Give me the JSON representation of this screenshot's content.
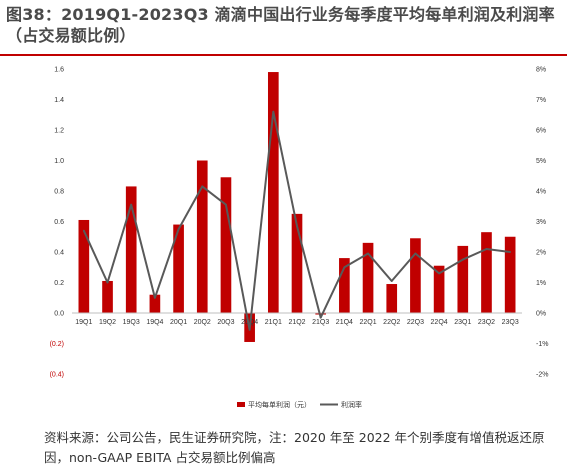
{
  "figure": {
    "title": "图38：2019Q1-2023Q3 滴滴中国出行业务每季度平均每单利润及利润率（占交易额比例）",
    "note": "资料来源：公司公告，民生证券研究院，注：2020 年至 2022 年个别季度有增值税返还原因，non-GAAP EBITA 占交易额比例偏高"
  },
  "colors": {
    "bar": "#c00000",
    "line": "#595959",
    "accent": "#c00000"
  },
  "chart_data": {
    "type": "bar",
    "categories": [
      "19Q1",
      "19Q2",
      "19Q3",
      "19Q4",
      "20Q1",
      "20Q2",
      "20Q3",
      "20Q4",
      "21Q1",
      "21Q2",
      "21Q3",
      "21Q4",
      "22Q1",
      "22Q2",
      "22Q3",
      "22Q4",
      "23Q1",
      "23Q2",
      "23Q3"
    ],
    "series": [
      {
        "name": "平均每单利润（元）",
        "type": "bar",
        "axis": "left",
        "values": [
          0.61,
          0.21,
          0.83,
          0.12,
          0.58,
          1.0,
          0.89,
          -0.19,
          1.58,
          0.65,
          -0.01,
          0.36,
          0.46,
          0.19,
          0.49,
          0.31,
          0.44,
          0.53,
          0.5
        ]
      },
      {
        "name": "利润率",
        "type": "line",
        "axis": "right",
        "values": [
          2.7,
          1.0,
          3.55,
          0.5,
          2.75,
          4.15,
          3.55,
          -0.55,
          6.6,
          2.85,
          -0.15,
          1.5,
          1.95,
          1.05,
          1.95,
          1.3,
          1.75,
          2.1,
          2.0
        ]
      }
    ],
    "y_left": {
      "ylim": [
        -0.4,
        1.6
      ],
      "ticks": [
        "1.6",
        "1.4",
        "1.2",
        "1.0",
        "0.8",
        "0.6",
        "0.4",
        "0.2",
        "0.0",
        "(0.2)",
        "(0.4)"
      ]
    },
    "y_right": {
      "ylim": [
        -2,
        8
      ],
      "ticks": [
        "8%",
        "7%",
        "6%",
        "5%",
        "4%",
        "3%",
        "2%",
        "1%",
        "0%",
        "-1%",
        "-2%"
      ]
    },
    "legend_position": "bottom",
    "grid": false
  }
}
